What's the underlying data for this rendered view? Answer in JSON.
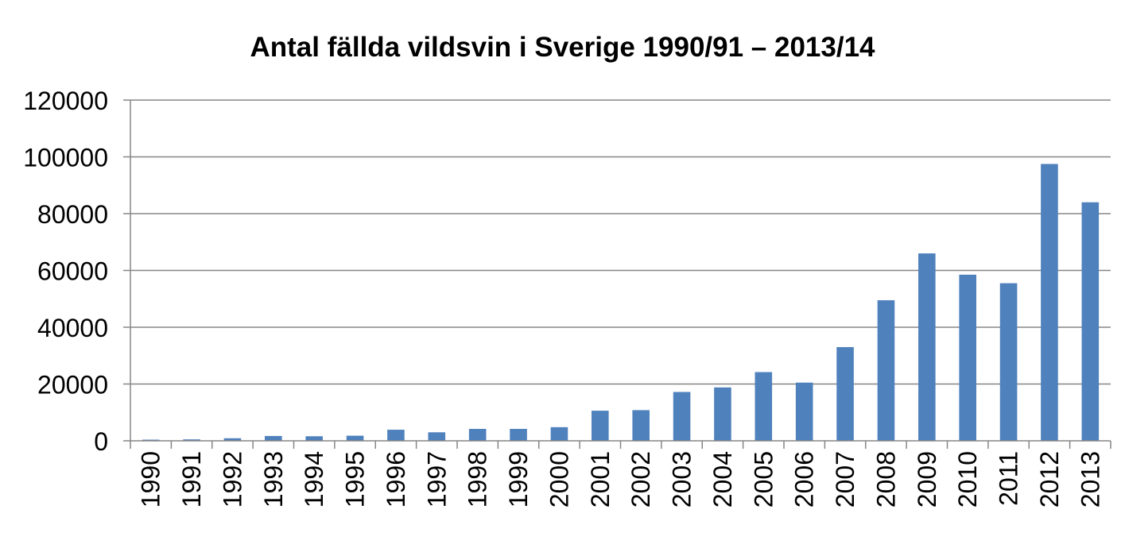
{
  "chart_data": {
    "type": "bar",
    "title": "Antal fällda vildsvin i Sverige 1990/91 – 2013/14",
    "xlabel": "",
    "ylabel": "",
    "categories": [
      "1990",
      "1991",
      "1992",
      "1993",
      "1994",
      "1995",
      "1996",
      "1997",
      "1998",
      "1999",
      "2000",
      "2001",
      "2002",
      "2003",
      "2004",
      "2005",
      "2006",
      "2007",
      "2008",
      "2009",
      "2010",
      "2011",
      "2012",
      "2013"
    ],
    "values": [
      400,
      500,
      900,
      1700,
      1600,
      1800,
      3900,
      3000,
      4200,
      4200,
      4800,
      10600,
      10800,
      17200,
      18800,
      24200,
      20500,
      33000,
      49500,
      66000,
      58500,
      55500,
      97500,
      84000
    ],
    "ylim": [
      0,
      120000
    ],
    "yticks": [
      "0",
      "20000",
      "40000",
      "60000",
      "80000",
      "100000",
      "120000"
    ],
    "grid": true,
    "legend": "none",
    "bar_color": "#4F81BD"
  }
}
